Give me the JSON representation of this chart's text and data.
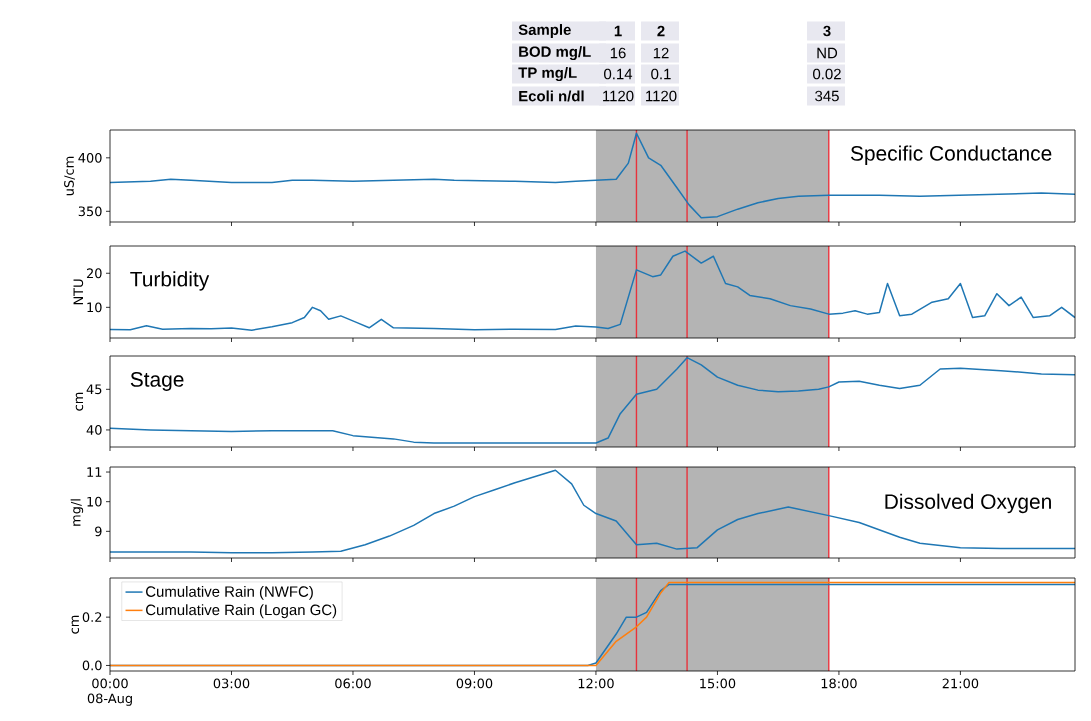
{
  "chart_data": [
    {
      "type": "other",
      "annotations": [
        "Sample",
        "1",
        "2",
        "3",
        "BOD mg/L",
        "16",
        "12",
        "ND",
        "TP mg/L",
        "0.14",
        "0.1",
        "0.02",
        "Ecoli n/dl",
        "1120",
        "1120",
        "345"
      ]
    },
    {
      "type": "line",
      "title": "Specific Conductance",
      "ylabel": "uS/cm",
      "xlim": [
        0,
        23.83
      ],
      "xticks": [
        0,
        3,
        6,
        9,
        12,
        15,
        18,
        21
      ],
      "ylim": [
        340,
        426
      ],
      "yticks": [
        350,
        400
      ],
      "tick_labels": "y",
      "bands": [
        {
          "axis": "x",
          "from": 12.0,
          "to": 17.75,
          "color": "#b4b4b4"
        }
      ],
      "ref_lines": [
        {
          "axis": "x",
          "value": 13.0,
          "color": "#e8323c"
        },
        {
          "axis": "x",
          "value": 14.25,
          "color": "#e8323c"
        },
        {
          "axis": "x",
          "value": 17.75,
          "color": "#e8323c"
        }
      ],
      "series": [
        {
          "color": "#1f77b4",
          "x": [
            0,
            1,
            1.5,
            2,
            3,
            4,
            4.5,
            5,
            6,
            7,
            8,
            8.5,
            10,
            11,
            11.5,
            12,
            12.5,
            12.8,
            13,
            13.3,
            13.6,
            14,
            14.3,
            14.6,
            15,
            15.5,
            16,
            16.5,
            17,
            17.75,
            18.5,
            19,
            20,
            21,
            22,
            23,
            23.83
          ],
          "values": [
            377,
            378,
            380,
            379,
            377,
            377,
            379,
            379,
            378,
            379,
            380,
            379,
            378,
            377,
            378,
            379,
            380,
            395,
            423,
            400,
            393,
            372,
            356,
            344,
            345,
            352,
            358,
            362,
            364,
            365,
            365,
            365,
            364,
            365,
            366,
            367,
            366
          ]
        }
      ]
    },
    {
      "type": "line",
      "title": "Turbidity",
      "ylabel": "NTU",
      "xlim": [
        0,
        23.83
      ],
      "xticks": [
        0,
        3,
        6,
        9,
        12,
        15,
        18,
        21
      ],
      "ylim": [
        1,
        28
      ],
      "yticks": [
        10,
        20
      ],
      "tick_labels": "y",
      "bands": [
        {
          "axis": "x",
          "from": 12.0,
          "to": 17.75,
          "color": "#b4b4b4"
        }
      ],
      "ref_lines": [
        {
          "axis": "x",
          "value": 13.0,
          "color": "#e8323c"
        },
        {
          "axis": "x",
          "value": 14.25,
          "color": "#e8323c"
        },
        {
          "axis": "x",
          "value": 17.75,
          "color": "#e8323c"
        }
      ],
      "series": [
        {
          "color": "#1f77b4",
          "x": [
            0,
            0.5,
            0.9,
            1.3,
            2,
            2.5,
            3,
            3.5,
            4,
            4.5,
            4.8,
            5.0,
            5.2,
            5.4,
            5.7,
            6.1,
            6.4,
            6.7,
            7,
            8,
            9,
            10,
            11,
            11.5,
            12,
            12.3,
            12.6,
            13,
            13.4,
            13.6,
            13.9,
            14.2,
            14.6,
            14.9,
            15.2,
            15.5,
            15.8,
            16.3,
            16.8,
            17.3,
            17.75,
            18.1,
            18.4,
            18.7,
            19.0,
            19.2,
            19.5,
            19.8,
            20.3,
            20.7,
            21.0,
            21.3,
            21.6,
            21.9,
            22.2,
            22.5,
            22.8,
            23.2,
            23.5,
            23.83
          ],
          "values": [
            3.5,
            3.4,
            4.6,
            3.6,
            3.8,
            3.7,
            3.9,
            3.3,
            4.3,
            5.5,
            7,
            10,
            9,
            6.5,
            7.5,
            5.5,
            4,
            6.5,
            4,
            3.8,
            3.4,
            3.6,
            3.5,
            4.5,
            4.2,
            3.8,
            5,
            21,
            19,
            19.5,
            25,
            26.5,
            23,
            25,
            17,
            16,
            13.5,
            12.5,
            10.5,
            9.5,
            8,
            8.3,
            9,
            8,
            8.5,
            17,
            7.5,
            8,
            11.5,
            12.5,
            17,
            7,
            7.5,
            14,
            10.5,
            13,
            7,
            7.5,
            10,
            7
          ]
        }
      ]
    },
    {
      "type": "line",
      "title": "Stage",
      "ylabel": "cm",
      "xlim": [
        0,
        23.83
      ],
      "xticks": [
        0,
        3,
        6,
        9,
        12,
        15,
        18,
        21
      ],
      "ylim": [
        37.9,
        49.1
      ],
      "yticks": [
        40,
        45
      ],
      "tick_labels": "y",
      "bands": [
        {
          "axis": "x",
          "from": 12.0,
          "to": 17.75,
          "color": "#b4b4b4"
        }
      ],
      "ref_lines": [
        {
          "axis": "x",
          "value": 13.0,
          "color": "#e8323c"
        },
        {
          "axis": "x",
          "value": 14.25,
          "color": "#e8323c"
        },
        {
          "axis": "x",
          "value": 17.75,
          "color": "#e8323c"
        }
      ],
      "series": [
        {
          "color": "#1f77b4",
          "x": [
            0,
            1,
            2,
            3,
            4,
            5,
            5.5,
            6,
            7,
            7.5,
            8,
            9,
            10,
            11,
            12,
            12.3,
            12.6,
            13,
            13.5,
            14,
            14.25,
            14.6,
            15,
            15.5,
            16,
            16.5,
            17,
            17.5,
            17.75,
            18,
            18.5,
            19,
            19.5,
            20,
            20.5,
            21,
            22,
            23,
            23.83
          ],
          "values": [
            40.2,
            40.0,
            39.9,
            39.8,
            39.9,
            39.9,
            39.9,
            39.3,
            38.9,
            38.5,
            38.4,
            38.4,
            38.4,
            38.4,
            38.4,
            39,
            42,
            44.4,
            45,
            47.5,
            48.9,
            48,
            46.5,
            45.5,
            44.9,
            44.7,
            44.8,
            45,
            45.3,
            45.9,
            46,
            45.5,
            45.1,
            45.5,
            47.5,
            47.6,
            47.3,
            46.9,
            46.8
          ]
        }
      ]
    },
    {
      "type": "line",
      "title": "Dissolved Oxygen",
      "ylabel": "mg/l",
      "xlim": [
        0,
        23.83
      ],
      "xticks": [
        0,
        3,
        6,
        9,
        12,
        15,
        18,
        21
      ],
      "ylim": [
        8.1,
        11.17
      ],
      "yticks": [
        9,
        10,
        11
      ],
      "tick_labels": "y",
      "bands": [
        {
          "axis": "x",
          "from": 12.0,
          "to": 17.75,
          "color": "#b4b4b4"
        }
      ],
      "ref_lines": [
        {
          "axis": "x",
          "value": 13.0,
          "color": "#e8323c"
        },
        {
          "axis": "x",
          "value": 14.25,
          "color": "#e8323c"
        },
        {
          "axis": "x",
          "value": 17.75,
          "color": "#e8323c"
        }
      ],
      "series": [
        {
          "color": "#1f77b4",
          "x": [
            0,
            2,
            3,
            4,
            5,
            5.7,
            6.3,
            6.9,
            7.5,
            8.0,
            8.5,
            9,
            9.5,
            10,
            10.5,
            11,
            11.4,
            11.7,
            12,
            12.5,
            13,
            13.5,
            14,
            14.5,
            15,
            15.5,
            16,
            16.75,
            17.75,
            18.5,
            19,
            19.5,
            20,
            21,
            22,
            23,
            23.83
          ],
          "values": [
            8.3,
            8.3,
            8.28,
            8.28,
            8.3,
            8.33,
            8.55,
            8.84,
            9.2,
            9.6,
            9.85,
            10.17,
            10.4,
            10.64,
            10.85,
            11.06,
            10.6,
            9.88,
            9.6,
            9.35,
            8.55,
            8.6,
            8.4,
            8.45,
            9.05,
            9.4,
            9.6,
            9.82,
            9.53,
            9.3,
            9.05,
            8.8,
            8.6,
            8.45,
            8.42,
            8.42,
            8.42
          ]
        }
      ]
    },
    {
      "type": "line",
      "ylabel": "cm",
      "xlim": [
        0,
        23.83
      ],
      "xticks": [
        {
          "value": 0,
          "label": "00:00 08-Aug"
        },
        {
          "value": 3,
          "label": "03:00"
        },
        {
          "value": 6,
          "label": "06:00"
        },
        {
          "value": 9,
          "label": "09:00"
        },
        {
          "value": 12,
          "label": "12:00"
        },
        {
          "value": 15,
          "label": "15:00"
        },
        {
          "value": 18,
          "label": "18:00"
        },
        {
          "value": 21,
          "label": "21:00"
        }
      ],
      "ylim": [
        -0.023,
        0.362
      ],
      "yticks": [
        {
          "value": 0,
          "label": "0.0"
        },
        0.2
      ],
      "legend": "top left",
      "bands": [
        {
          "axis": "x",
          "from": 12.0,
          "to": 17.75,
          "color": "#b4b4b4"
        }
      ],
      "ref_lines": [
        {
          "axis": "x",
          "value": 13.0,
          "color": "#e8323c"
        },
        {
          "axis": "x",
          "value": 14.25,
          "color": "#e8323c"
        },
        {
          "axis": "x",
          "value": 17.75,
          "color": "#e8323c"
        }
      ],
      "series": [
        {
          "name": "Cumulative Rain (NWFC)",
          "color": "#1f77b4",
          "x": [
            0,
            11.8,
            12.0,
            12.5,
            12.75,
            13.0,
            13.25,
            13.6,
            13.8,
            23.83
          ],
          "values": [
            0,
            0,
            0.01,
            0.13,
            0.2,
            0.2,
            0.22,
            0.31,
            0.335,
            0.335
          ]
        },
        {
          "name": "Cumulative Rain (Logan GC)",
          "color": "#ff7f0e",
          "x": [
            0,
            12.0,
            12.5,
            13.0,
            13.25,
            13.6,
            13.8,
            23.83
          ],
          "values": [
            0,
            0,
            0.1,
            0.16,
            0.2,
            0.3,
            0.343,
            0.343
          ]
        }
      ]
    }
  ]
}
